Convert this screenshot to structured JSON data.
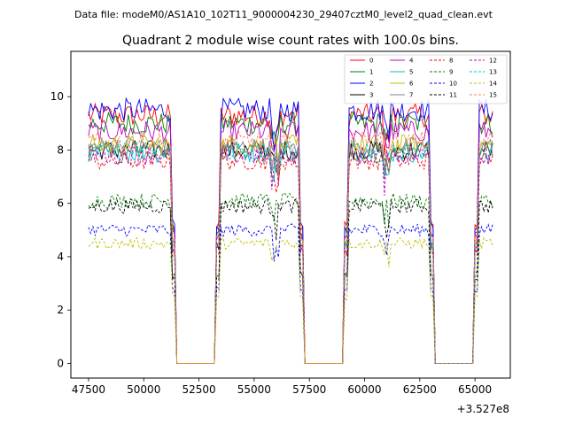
{
  "chart_data": {
    "type": "line",
    "suptitle": "Data file: modeM0/AS1A10_102T11_9000004230_29407cztM0_level2_quad_clean.evt",
    "title": "Quadrant 2 module wise count rates with 100.0s bins.",
    "xlabel": "",
    "ylabel": "",
    "x_offset_label": "+3.527e8",
    "xlim": [
      46700,
      66600
    ],
    "ylim": [
      -0.55,
      11.7
    ],
    "x_ticks": [
      47500,
      50000,
      52500,
      55000,
      57500,
      60000,
      62500,
      65000
    ],
    "x_tick_labels": [
      "47500",
      "50000",
      "52500",
      "55000",
      "57500",
      "60000",
      "62500",
      "65000"
    ],
    "y_ticks": [
      0,
      2,
      4,
      6,
      8,
      10
    ],
    "y_tick_labels": [
      "0",
      "2",
      "4",
      "6",
      "8",
      "10"
    ],
    "bin_seconds": 100,
    "x_range": [
      47500,
      65800
    ],
    "zero_gaps": [
      [
        51400,
        53300
      ],
      [
        57200,
        59100
      ],
      [
        63100,
        65000
      ]
    ],
    "legend": {
      "location": "upper right",
      "ncol": 4
    },
    "series": [
      {
        "name": "0",
        "color": "#ff0000",
        "style": "solid",
        "level": 9.3
      },
      {
        "name": "1",
        "color": "#008000",
        "style": "solid",
        "level": 9.0
      },
      {
        "name": "2",
        "color": "#0000ff",
        "style": "solid",
        "level": 9.5
      },
      {
        "name": "3",
        "color": "#000000",
        "style": "solid",
        "level": 8.0
      },
      {
        "name": "4",
        "color": "#bf00bf",
        "style": "solid",
        "level": 8.7
      },
      {
        "name": "5",
        "color": "#00bfbf",
        "style": "solid",
        "level": 7.9
      },
      {
        "name": "6",
        "color": "#bfbf00",
        "style": "solid",
        "level": 8.2
      },
      {
        "name": "7",
        "color": "#808080",
        "style": "solid",
        "level": 8.1
      },
      {
        "name": "8",
        "color": "#ff0000",
        "style": "dashed",
        "level": 7.6
      },
      {
        "name": "9",
        "color": "#008000",
        "style": "dashed",
        "level": 6.1
      },
      {
        "name": "10",
        "color": "#0000ff",
        "style": "dashed",
        "level": 5.0
      },
      {
        "name": "11",
        "color": "#000000",
        "style": "dashed",
        "level": 5.9
      },
      {
        "name": "12",
        "color": "#bf00bf",
        "style": "dashed",
        "level": 7.8
      },
      {
        "name": "13",
        "color": "#00bfbf",
        "style": "dashed",
        "level": 8.0
      },
      {
        "name": "14",
        "color": "#bfbf00",
        "style": "dashed",
        "level": 4.5
      },
      {
        "name": "15",
        "color": "#ff7f50",
        "style": "dashed",
        "level": 8.3
      }
    ]
  }
}
